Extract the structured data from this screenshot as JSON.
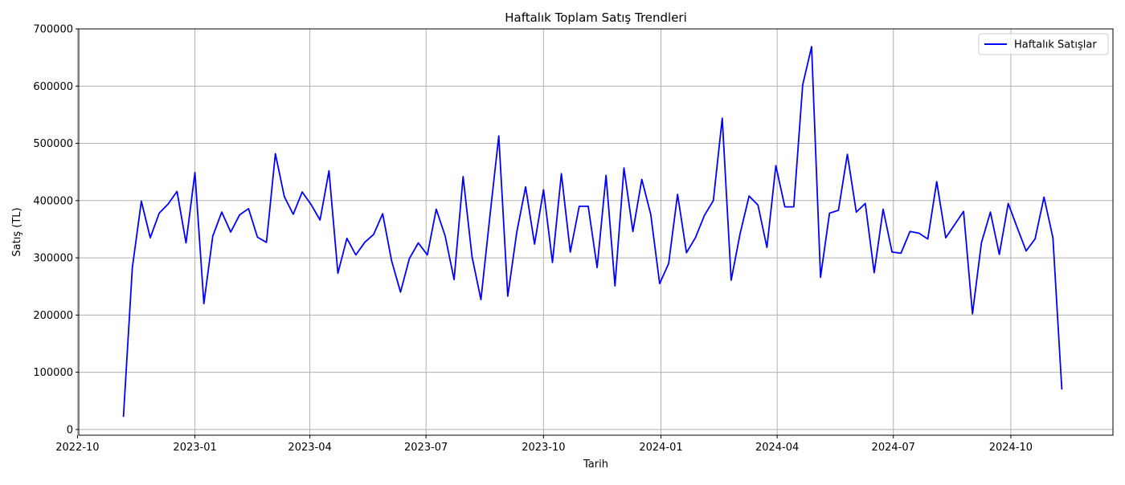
{
  "chart_data": {
    "type": "line",
    "title": "Haftalık Toplam Satış Trendleri",
    "xlabel": "Tarih",
    "ylabel": "Satış (TL)",
    "ylim": [
      -10000,
      700000
    ],
    "xlim": [
      "2022-10-02",
      "2024-12-20"
    ],
    "y_ticks": [
      0,
      100000,
      200000,
      300000,
      400000,
      500000,
      600000,
      700000
    ],
    "x_ticks": [
      "2022-10",
      "2023-01",
      "2023-04",
      "2023-07",
      "2023-10",
      "2024-01",
      "2024-04",
      "2024-07",
      "2024-10"
    ],
    "grid": true,
    "legend_position": "top-right",
    "series": [
      {
        "name": "Haftalık Satışlar",
        "color": "#0000ff",
        "x": [
          "2022-11-06",
          "2022-11-13",
          "2022-11-20",
          "2022-11-27",
          "2022-12-04",
          "2022-12-11",
          "2022-12-18",
          "2022-12-25",
          "2023-01-01",
          "2023-01-08",
          "2023-01-15",
          "2023-01-22",
          "2023-01-29",
          "2023-02-05",
          "2023-02-12",
          "2023-02-19",
          "2023-02-26",
          "2023-03-05",
          "2023-03-12",
          "2023-03-19",
          "2023-03-26",
          "2023-04-02",
          "2023-04-09",
          "2023-04-16",
          "2023-04-23",
          "2023-04-30",
          "2023-05-07",
          "2023-05-14",
          "2023-05-21",
          "2023-05-28",
          "2023-06-04",
          "2023-06-11",
          "2023-06-18",
          "2023-06-25",
          "2023-07-02",
          "2023-07-09",
          "2023-07-16",
          "2023-07-23",
          "2023-07-30",
          "2023-08-06",
          "2023-08-13",
          "2023-08-20",
          "2023-08-27",
          "2023-09-03",
          "2023-09-10",
          "2023-09-17",
          "2023-09-24",
          "2023-10-01",
          "2023-10-08",
          "2023-10-15",
          "2023-10-22",
          "2023-10-29",
          "2023-11-05",
          "2023-11-12",
          "2023-11-19",
          "2023-11-26",
          "2023-12-03",
          "2023-12-10",
          "2023-12-17",
          "2023-12-24",
          "2023-12-31",
          "2024-01-07",
          "2024-01-14",
          "2024-01-21",
          "2024-01-28",
          "2024-02-04",
          "2024-02-11",
          "2024-02-18",
          "2024-02-25",
          "2024-03-03",
          "2024-03-10",
          "2024-03-17",
          "2024-03-24",
          "2024-03-31",
          "2024-04-07",
          "2024-04-14",
          "2024-04-21",
          "2024-04-28",
          "2024-05-05",
          "2024-05-12",
          "2024-05-19",
          "2024-05-26",
          "2024-06-02",
          "2024-06-09",
          "2024-06-16",
          "2024-06-23",
          "2024-06-30",
          "2024-07-07",
          "2024-07-14",
          "2024-07-21",
          "2024-07-28",
          "2024-08-04",
          "2024-08-11",
          "2024-08-18",
          "2024-08-25",
          "2024-09-01",
          "2024-09-08",
          "2024-09-15",
          "2024-09-22",
          "2024-09-29",
          "2024-10-06",
          "2024-10-13",
          "2024-10-20",
          "2024-10-27",
          "2024-11-03",
          "2024-11-10"
        ],
        "values": [
          22000,
          283000,
          399000,
          335000,
          378000,
          394000,
          416000,
          326000,
          449000,
          220000,
          338000,
          380000,
          345000,
          375000,
          386000,
          336000,
          327000,
          482000,
          407000,
          376000,
          415000,
          393000,
          366000,
          452000,
          273000,
          334000,
          305000,
          327000,
          341000,
          377000,
          295000,
          240000,
          299000,
          326000,
          305000,
          385000,
          338000,
          262000,
          442000,
          302000,
          227000,
          372000,
          513000,
          233000,
          344000,
          424000,
          324000,
          419000,
          292000,
          447000,
          310000,
          390000,
          390000,
          283000,
          444000,
          251000,
          457000,
          346000,
          437000,
          376000,
          255000,
          290000,
          411000,
          309000,
          335000,
          374000,
          400000,
          544000,
          261000,
          342000,
          408000,
          392000,
          318000,
          461000,
          389000,
          389000,
          602000,
          669000,
          266000,
          378000,
          383000,
          481000,
          380000,
          395000,
          274000,
          385000,
          310000,
          308000,
          346000,
          343000,
          333000,
          433000,
          335000,
          358000,
          381000,
          202000,
          326000,
          380000,
          306000,
          395000,
          353000,
          312000,
          333000,
          406000,
          335000,
          70000
        ]
      }
    ]
  }
}
